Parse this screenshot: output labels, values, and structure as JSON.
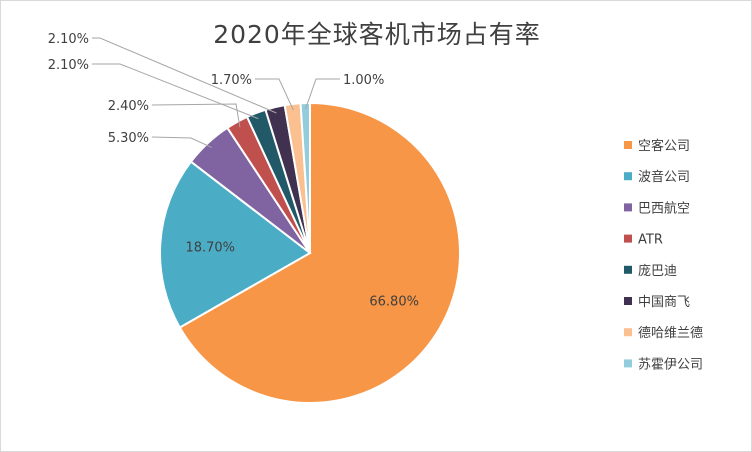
{
  "chart_data": {
    "type": "pie",
    "title": "2020年全球客机市场占有率",
    "categories": [
      "空客公司",
      "波音公司",
      "巴西航空",
      "ATR",
      "庞巴迪",
      "中国商飞",
      "德哈维兰德",
      "苏霍伊公司"
    ],
    "values": [
      66.8,
      18.7,
      5.3,
      2.4,
      2.1,
      2.1,
      1.7,
      1.0
    ],
    "data_labels": [
      "66.80%",
      "18.70%",
      "5.30%",
      "2.40%",
      "2.10%",
      "2.10%",
      "1.70%",
      "1.00%"
    ],
    "colors": [
      "#F79646",
      "#4BACC6",
      "#8064A2",
      "#C0504D",
      "#215968",
      "#403151",
      "#FAC090",
      "#93CDDD"
    ],
    "legend_position": "right"
  }
}
